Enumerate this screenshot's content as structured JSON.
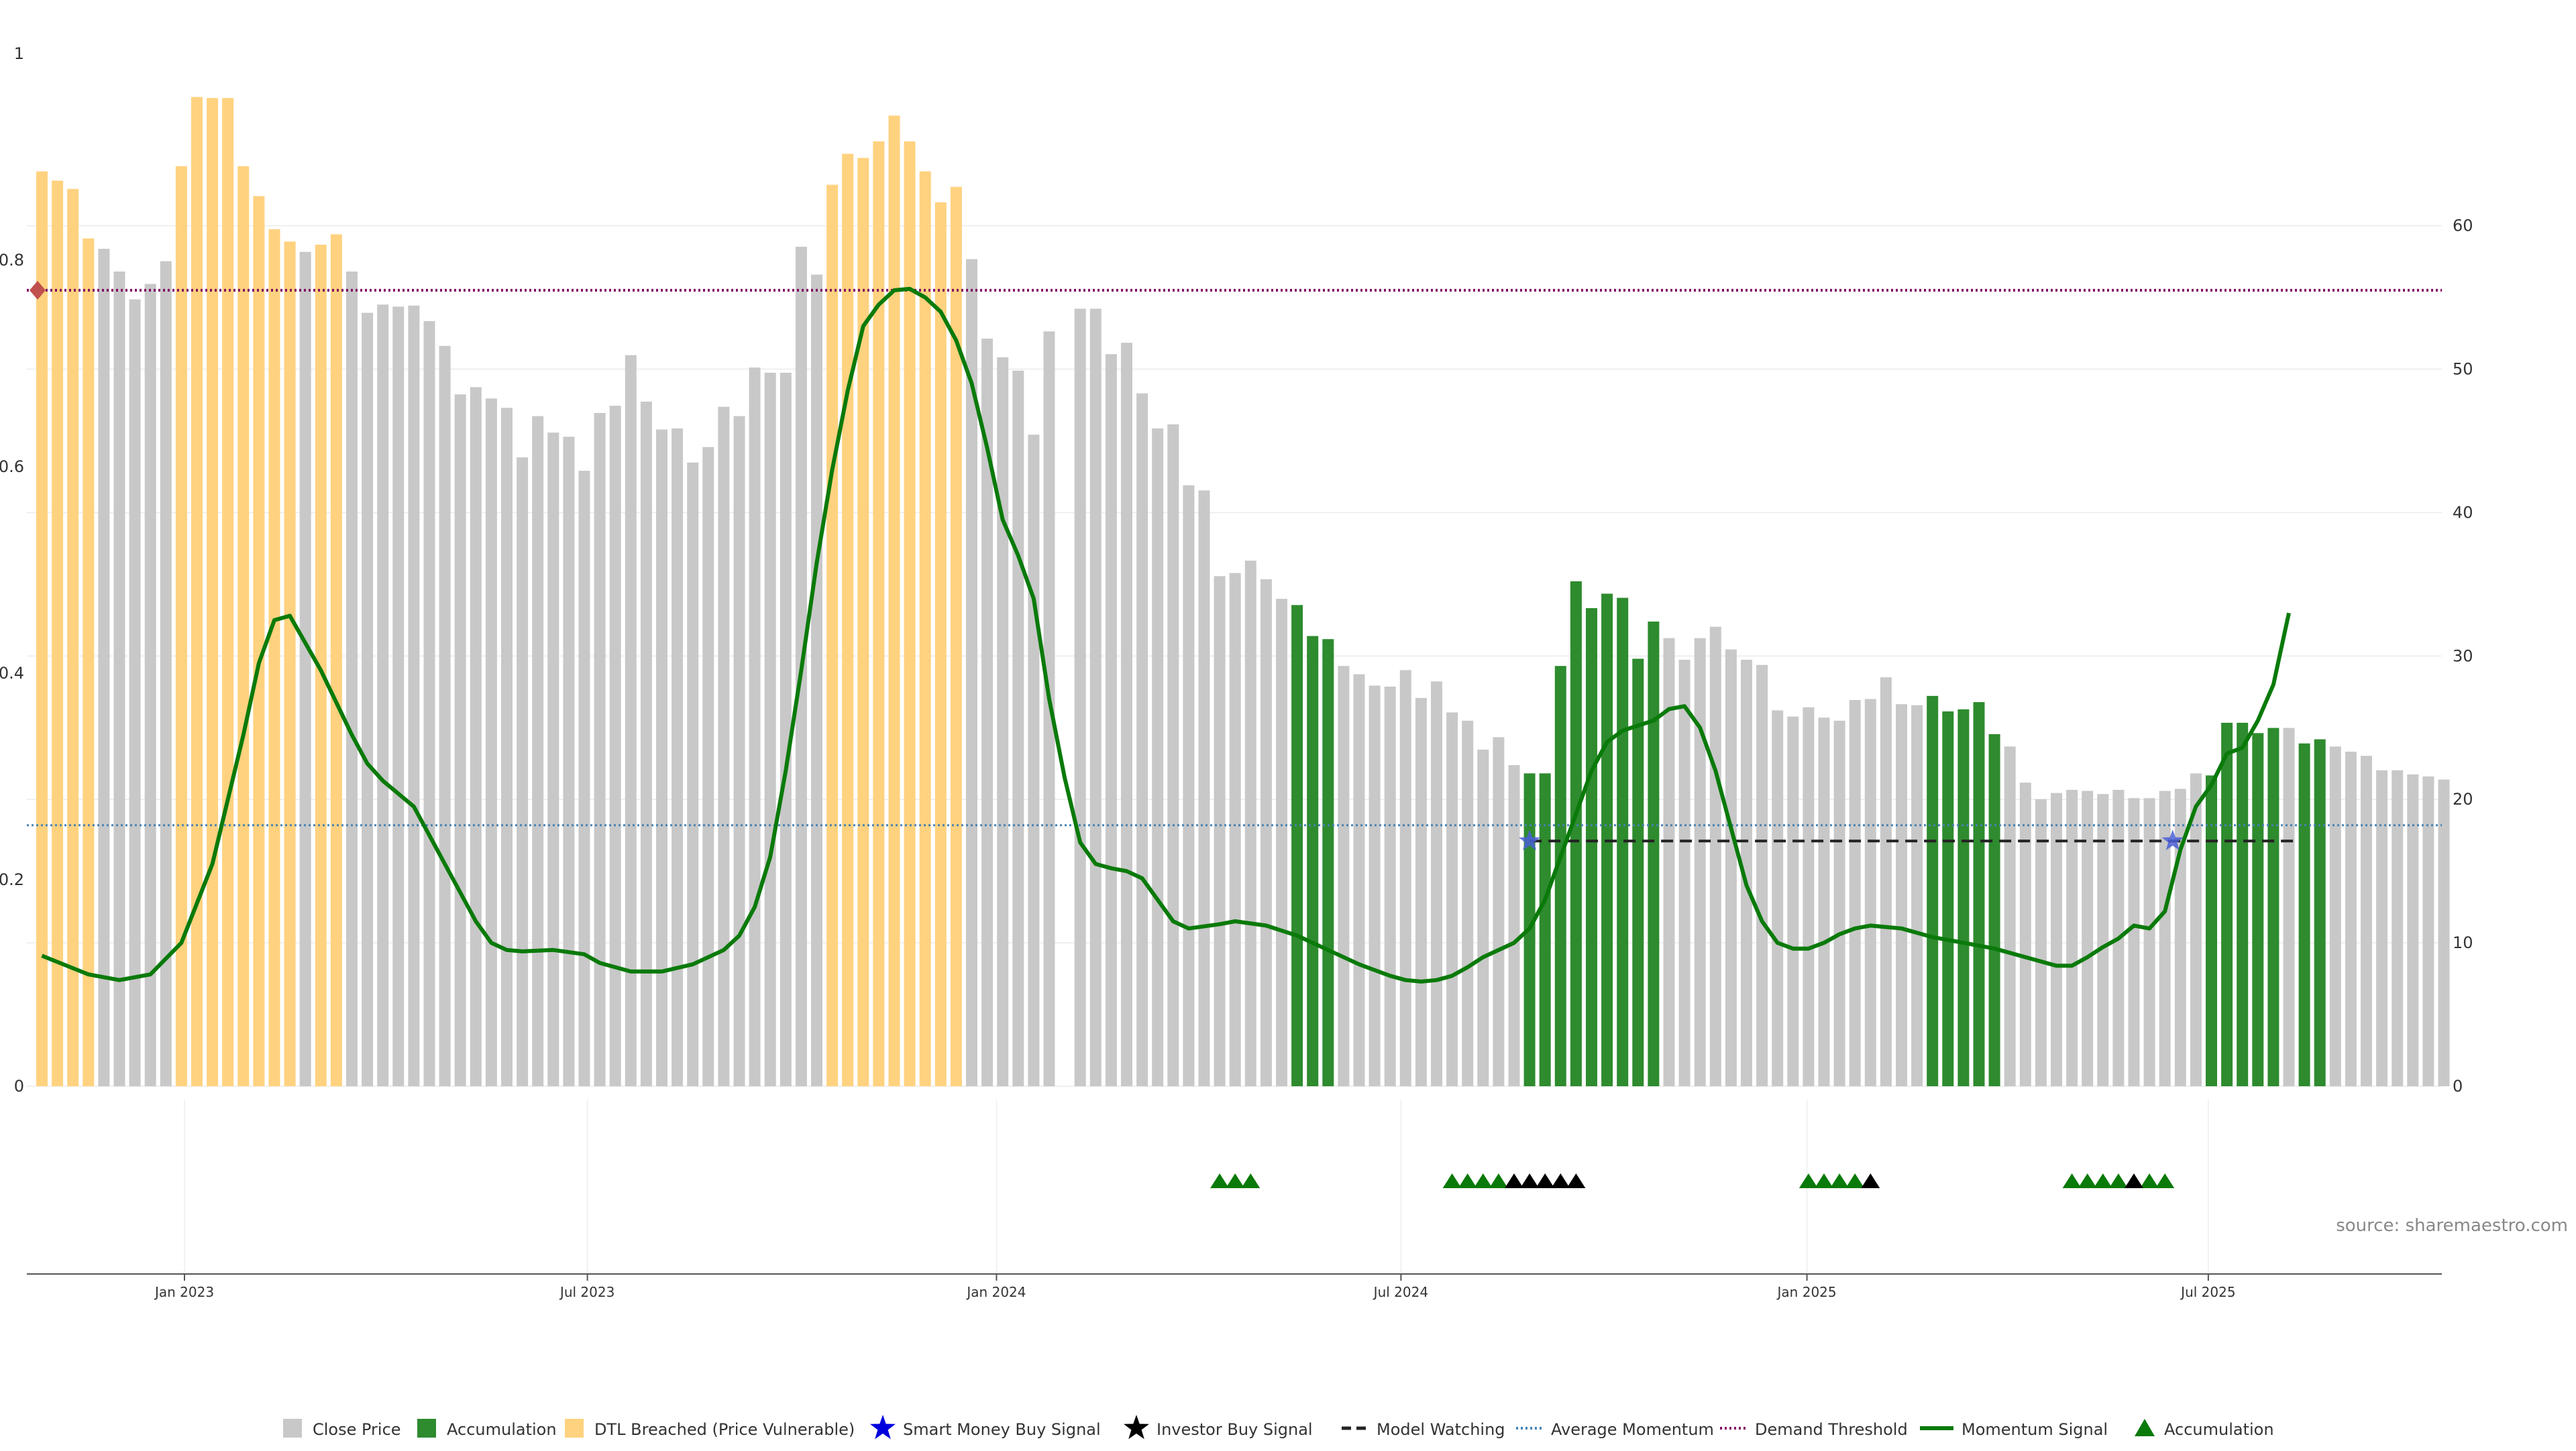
{
  "chart_data": {
    "type": "bar",
    "source": "source: sharemaestro.com",
    "left_axis": {
      "ylim": [
        0,
        1
      ],
      "ticks": [
        "0",
        "0.2",
        "0.4",
        "0.6",
        "0.8",
        "1"
      ]
    },
    "right_axis": {
      "ylim": [
        0,
        72
      ],
      "ticks": [
        "0",
        "10",
        "20",
        "30",
        "40",
        "50",
        "60"
      ]
    },
    "x_ticks": [
      "Jan 2023",
      "Jul 2023",
      "Jan 2024",
      "Jul 2024",
      "Jan 2025",
      "Jul 2025"
    ],
    "grid": true,
    "legend_position": "bottom-center",
    "colors": {
      "close": "#c8c8c8",
      "accumulation": "#2e8b2e",
      "dtl": "#ffd27f",
      "smart_money": "#0000dd",
      "investor": "#000000",
      "model_watching": "#222222",
      "average_momentum": "#4682b4",
      "demand_threshold": "#800060",
      "momentum_signal": "#0a7a0a",
      "accumulation_marker": "#0a7a0a"
    },
    "legend": [
      {
        "key": "close",
        "label": "Close Price",
        "shape": "square"
      },
      {
        "key": "accumulation",
        "label": "Accumulation",
        "shape": "square"
      },
      {
        "key": "dtl",
        "label": "DTL Breached (Price Vulnerable)",
        "shape": "square"
      },
      {
        "key": "smart_money",
        "label": "Smart Money Buy Signal",
        "shape": "star"
      },
      {
        "key": "investor",
        "label": "Investor Buy Signal",
        "shape": "star"
      },
      {
        "key": "model_watching",
        "label": "Model Watching",
        "shape": "dash"
      },
      {
        "key": "average_momentum",
        "label": "Average Momentum",
        "shape": "dot"
      },
      {
        "key": "demand_threshold",
        "label": "Demand Threshold",
        "shape": "dot"
      },
      {
        "key": "momentum_signal",
        "label": "Momentum Signal",
        "shape": "line"
      },
      {
        "key": "accumulation_marker",
        "label": "Accumulation",
        "shape": "triangle"
      }
    ],
    "bars": {
      "values": [
        0.886,
        0.877,
        0.869,
        0.821,
        0.811,
        0.789,
        0.762,
        0.777,
        0.799,
        0.891,
        0.958,
        0.957,
        0.957,
        0.891,
        0.862,
        0.83,
        0.818,
        0.808,
        0.815,
        0.825,
        0.789,
        0.749,
        0.757,
        0.755,
        0.756,
        0.741,
        0.717,
        0.67,
        0.677,
        0.666,
        0.657,
        0.609,
        0.649,
        0.633,
        0.629,
        0.596,
        0.652,
        0.659,
        0.708,
        0.663,
        0.636,
        0.637,
        0.604,
        0.619,
        0.658,
        0.649,
        0.696,
        0.691,
        0.691,
        0.813,
        0.786,
        0.873,
        0.903,
        0.899,
        0.915,
        0.94,
        0.915,
        0.886,
        0.856,
        0.871,
        0.801,
        0.724,
        0.706,
        0.693,
        0.631,
        0.731,
        0.0,
        0.753,
        0.753,
        0.709,
        0.72,
        0.671,
        0.637,
        0.641,
        0.582,
        0.577,
        0.494,
        0.497,
        0.509,
        0.491,
        0.472,
        0.466,
        0.436,
        0.433,
        0.407,
        0.399,
        0.388,
        0.387,
        0.403,
        0.376,
        0.392,
        0.362,
        0.354,
        0.326,
        0.338,
        0.311,
        0.303,
        0.303,
        0.407,
        0.489,
        0.463,
        0.477,
        0.473,
        0.414,
        0.45,
        0.434,
        0.413,
        0.434,
        0.445,
        0.423,
        0.413,
        0.408,
        0.364,
        0.358,
        0.367,
        0.357,
        0.354,
        0.374,
        0.375,
        0.396,
        0.37,
        0.369,
        0.378,
        0.363,
        0.365,
        0.372,
        0.341,
        0.329,
        0.294,
        0.278,
        0.284,
        0.287,
        0.286,
        0.283,
        0.287,
        0.279,
        0.279,
        0.286,
        0.288,
        0.303,
        0.301,
        0.352,
        0.352,
        0.342,
        0.347,
        0.347,
        0.332,
        0.336,
        0.329,
        0.324,
        0.32,
        0.306,
        0.306,
        0.302,
        0.3,
        0.297
      ],
      "categories": [
        "N",
        "N",
        "N",
        "N",
        "C",
        "C",
        "C",
        "C",
        "C",
        "N",
        "N",
        "N",
        "N",
        "N",
        "N",
        "N",
        "N",
        "C",
        "N",
        "N",
        "C",
        "C",
        "C",
        "C",
        "C",
        "C",
        "C",
        "C",
        "C",
        "C",
        "C",
        "C",
        "C",
        "C",
        "C",
        "C",
        "C",
        "C",
        "C",
        "C",
        "C",
        "C",
        "C",
        "C",
        "C",
        "C",
        "C",
        "C",
        "C",
        "C",
        "C",
        "N",
        "N",
        "N",
        "N",
        "N",
        "N",
        "N",
        "N",
        "N",
        "C",
        "C",
        "C",
        "C",
        "C",
        "C",
        "C",
        "C",
        "C",
        "C",
        "C",
        "C",
        "C",
        "C",
        "C",
        "C",
        "C",
        "C",
        "C",
        "C",
        "C",
        "A",
        "A",
        "A",
        "C",
        "C",
        "C",
        "C",
        "C",
        "C",
        "C",
        "C",
        "C",
        "C",
        "C",
        "C",
        "A",
        "A",
        "A",
        "A",
        "A",
        "A",
        "A",
        "A",
        "A",
        "C",
        "C",
        "C",
        "C",
        "C",
        "C",
        "C",
        "C",
        "C",
        "C",
        "C",
        "C",
        "C",
        "C",
        "C",
        "C",
        "C",
        "A",
        "A",
        "A",
        "A",
        "A",
        "C",
        "C",
        "C",
        "C",
        "C",
        "C",
        "C",
        "C",
        "C",
        "C",
        "C",
        "C",
        "C",
        "A",
        "A",
        "A",
        "A",
        "A",
        "C",
        "A",
        "A",
        "C",
        "C",
        "C",
        "C",
        "C",
        "C",
        "C",
        "C"
      ]
    },
    "momentum_signal": [
      [
        0,
        9.1
      ],
      [
        3,
        7.8
      ],
      [
        5,
        7.4
      ],
      [
        7,
        7.8
      ],
      [
        9,
        10
      ],
      [
        11,
        15.5
      ],
      [
        13,
        24.5
      ],
      [
        14,
        29.5
      ],
      [
        15,
        32.5
      ],
      [
        16,
        32.8
      ],
      [
        18,
        29
      ],
      [
        20,
        24.5
      ],
      [
        21,
        22.5
      ],
      [
        22,
        21.3
      ],
      [
        24,
        19.5
      ],
      [
        26,
        15.5
      ],
      [
        28,
        11.5
      ],
      [
        29,
        10
      ],
      [
        30,
        9.5
      ],
      [
        31,
        9.4
      ],
      [
        33,
        9.5
      ],
      [
        35,
        9.2
      ],
      [
        36,
        8.6
      ],
      [
        38,
        8
      ],
      [
        40,
        8
      ],
      [
        42,
        8.5
      ],
      [
        44,
        9.5
      ],
      [
        45,
        10.5
      ],
      [
        46,
        12.5
      ],
      [
        47,
        16
      ],
      [
        48,
        22
      ],
      [
        49,
        29
      ],
      [
        50,
        36.5
      ],
      [
        51,
        43
      ],
      [
        52,
        48.5
      ],
      [
        53,
        53
      ],
      [
        54,
        54.5
      ],
      [
        55,
        55.5
      ],
      [
        56,
        55.6
      ],
      [
        57,
        55
      ],
      [
        58,
        54
      ],
      [
        59,
        52
      ],
      [
        60,
        49
      ],
      [
        61,
        44.5
      ],
      [
        62,
        39.5
      ],
      [
        63,
        37
      ],
      [
        64,
        34
      ],
      [
        65,
        27
      ],
      [
        66,
        21.5
      ],
      [
        67,
        17
      ],
      [
        68,
        15.5
      ],
      [
        69,
        15.2
      ],
      [
        70,
        15
      ],
      [
        71,
        14.5
      ],
      [
        72,
        13
      ],
      [
        73,
        11.5
      ],
      [
        74,
        11
      ],
      [
        76,
        11.3
      ],
      [
        77,
        11.5
      ],
      [
        79,
        11.2
      ],
      [
        81,
        10.5
      ],
      [
        83,
        9.5
      ],
      [
        85,
        8.5
      ],
      [
        87,
        7.7
      ],
      [
        88,
        7.4
      ],
      [
        89,
        7.3
      ],
      [
        90,
        7.4
      ],
      [
        91,
        7.7
      ],
      [
        92,
        8.3
      ],
      [
        93,
        9
      ],
      [
        95,
        10
      ],
      [
        96,
        11
      ],
      [
        97,
        13
      ],
      [
        98,
        16
      ],
      [
        99,
        19
      ],
      [
        100,
        22
      ],
      [
        101,
        24
      ],
      [
        102,
        24.8
      ],
      [
        104,
        25.5
      ],
      [
        105,
        26.3
      ],
      [
        106,
        26.5
      ],
      [
        107,
        25
      ],
      [
        108,
        22
      ],
      [
        109,
        18
      ],
      [
        110,
        14
      ],
      [
        111,
        11.5
      ],
      [
        112,
        10
      ],
      [
        113,
        9.6
      ],
      [
        114,
        9.6
      ],
      [
        115,
        10
      ],
      [
        116,
        10.6
      ],
      [
        117,
        11
      ],
      [
        118,
        11.2
      ],
      [
        120,
        11
      ],
      [
        122,
        10.4
      ],
      [
        124,
        10
      ],
      [
        126,
        9.6
      ],
      [
        128,
        9
      ],
      [
        130,
        8.4
      ],
      [
        131,
        8.4
      ],
      [
        132,
        9
      ],
      [
        133,
        9.7
      ],
      [
        134,
        10.3
      ],
      [
        135,
        11.2
      ],
      [
        136,
        11
      ],
      [
        137,
        12.2
      ],
      [
        138,
        16.5
      ],
      [
        139,
        19.5
      ],
      [
        140,
        21
      ],
      [
        141,
        23.2
      ],
      [
        142,
        23.6
      ],
      [
        143,
        25.5
      ],
      [
        144,
        28
      ],
      [
        145,
        33
      ]
    ],
    "demand_threshold_right": 55.5,
    "average_momentum_right": 18.2,
    "model_watching": {
      "from_index": 96,
      "to_index": 145,
      "right_value": 17.1
    },
    "smart_money_signals": [
      {
        "index": 96,
        "right_value": 17.1
      },
      {
        "index": 137.5,
        "right_value": 17.1
      }
    ],
    "demand_marker": {
      "index": 0,
      "right_value": 55.5
    },
    "accumulation_markers": [
      76,
      77,
      78,
      91,
      92,
      93,
      94,
      114,
      115,
      116,
      117,
      131,
      132,
      133,
      134,
      136,
      137
    ],
    "investor_markers": [
      95,
      96,
      97,
      98,
      99,
      118,
      135
    ]
  }
}
